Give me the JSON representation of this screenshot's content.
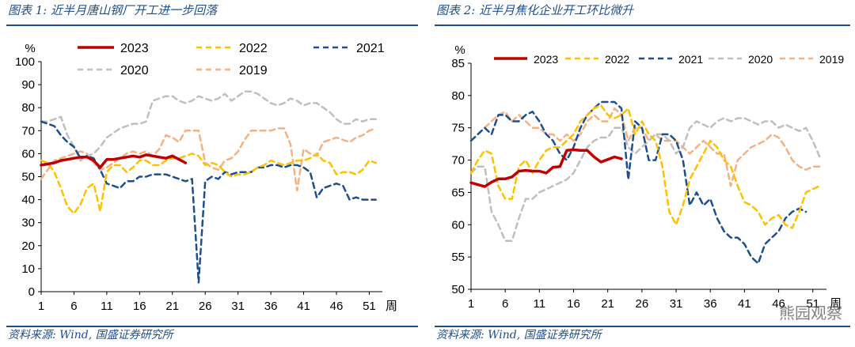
{
  "panels": [
    {
      "title": "图表 1:  近半月唐山钢厂开工进一步回落",
      "source": "资料来源:  Wind,  国盛证券研究所"
    },
    {
      "title": "图表 2:  近半月焦化企业开工环比微升",
      "source": "资料来源:  Wind,  国盛证券研究所",
      "watermark": "熊园观察"
    }
  ],
  "chart_data": [
    {
      "type": "line",
      "title": "",
      "ylabel": "%",
      "xlabel": "周",
      "ylim": [
        0,
        100
      ],
      "yticks": [
        0,
        10,
        20,
        30,
        40,
        50,
        60,
        70,
        80,
        90,
        100
      ],
      "xlim": [
        1,
        53
      ],
      "xticks": [
        1,
        6,
        11,
        16,
        21,
        26,
        31,
        36,
        41,
        46,
        51
      ],
      "legend_position": "top",
      "grid": false,
      "series": [
        {
          "name": "2023",
          "color": "#c00000",
          "dash": "",
          "width": 3.5,
          "x": [
            1,
            2,
            3,
            4,
            5,
            6,
            7,
            8,
            9,
            10,
            11,
            12,
            13,
            14,
            15,
            16,
            17,
            18,
            19,
            20,
            21,
            22,
            23
          ],
          "y": [
            55,
            55.5,
            56,
            57,
            57.5,
            58,
            58.5,
            58.5,
            57,
            54,
            57.5,
            57.5,
            58,
            58.5,
            59,
            58.5,
            59.5,
            59,
            58.5,
            58,
            59,
            57.5,
            56
          ]
        },
        {
          "name": "2022",
          "color": "#ffc000",
          "dash": "7,5",
          "width": 2.5,
          "x": [
            1,
            2,
            3,
            4,
            5,
            6,
            7,
            8,
            9,
            10,
            11,
            12,
            13,
            14,
            15,
            16,
            17,
            18,
            19,
            20,
            21,
            22,
            23,
            24,
            25,
            26,
            27,
            28,
            29,
            30,
            31,
            32,
            33,
            34,
            35,
            36,
            37,
            38,
            39,
            40,
            41,
            42,
            43,
            44,
            45,
            46,
            47,
            48,
            49,
            50,
            51,
            52
          ],
          "y": [
            57,
            56,
            52,
            45,
            37,
            34,
            38,
            45,
            47,
            35,
            52,
            55,
            55,
            52,
            54,
            57,
            57,
            55,
            55,
            57,
            58,
            58,
            59,
            60,
            59,
            55,
            56,
            55,
            52,
            50,
            51,
            51,
            52,
            54,
            55,
            57,
            56,
            55,
            56,
            57,
            57,
            58,
            60,
            57,
            56,
            51,
            52,
            52,
            51,
            53,
            57,
            56
          ]
        },
        {
          "name": "2021",
          "color": "#1f4e8c",
          "dash": "7,5",
          "width": 2.5,
          "x": [
            1,
            2,
            3,
            4,
            5,
            6,
            7,
            8,
            9,
            10,
            11,
            12,
            13,
            14,
            15,
            16,
            17,
            18,
            19,
            20,
            21,
            22,
            23,
            24,
            25,
            26,
            27,
            28,
            29,
            30,
            31,
            32,
            33,
            34,
            35,
            36,
            37,
            38,
            39,
            40,
            41,
            42,
            43,
            44,
            45,
            46,
            47,
            48,
            49,
            50,
            51,
            52
          ],
          "y": [
            74,
            73,
            72,
            68,
            65,
            63,
            58,
            59,
            58,
            53,
            47,
            46,
            45,
            48,
            48,
            50,
            50,
            51,
            51,
            51,
            50,
            49,
            48,
            49,
            4,
            48,
            50,
            49,
            52,
            51,
            52,
            52,
            52,
            54,
            54,
            55,
            55,
            54,
            55,
            55,
            54,
            52,
            41,
            45,
            46,
            47,
            46,
            40,
            41,
            40,
            40,
            40
          ]
        },
        {
          "name": "2020",
          "color": "#bfbfbf",
          "dash": "7,5",
          "width": 2.5,
          "x": [
            1,
            2,
            3,
            4,
            5,
            6,
            7,
            8,
            9,
            10,
            11,
            12,
            13,
            14,
            15,
            16,
            17,
            18,
            19,
            20,
            21,
            22,
            23,
            24,
            25,
            26,
            27,
            28,
            29,
            30,
            31,
            32,
            33,
            34,
            35,
            36,
            37,
            38,
            39,
            40,
            41,
            42,
            43,
            44,
            45,
            46,
            47,
            48,
            49,
            50,
            51,
            52
          ],
          "y": [
            74,
            74,
            75,
            76,
            68,
            63,
            57,
            59,
            60,
            63,
            67,
            69,
            71,
            72,
            73,
            73,
            74,
            83,
            84,
            85,
            85,
            83,
            82,
            83,
            85,
            84,
            83,
            84,
            86,
            83,
            85,
            87,
            87,
            86,
            84,
            82,
            81,
            82,
            84,
            83,
            81,
            82,
            82,
            80,
            78,
            75,
            73,
            73,
            75,
            74,
            75,
            75
          ]
        },
        {
          "name": "2019",
          "color": "#f4b183",
          "dash": "7,5",
          "width": 2.5,
          "x": [
            1,
            2,
            3,
            4,
            5,
            6,
            7,
            8,
            9,
            10,
            11,
            12,
            13,
            14,
            15,
            16,
            17,
            18,
            19,
            20,
            21,
            22,
            23,
            24,
            25,
            26,
            27,
            28,
            29,
            30,
            31,
            32,
            33,
            34,
            35,
            36,
            37,
            38,
            39,
            40,
            41,
            42,
            43,
            44,
            45,
            46,
            47,
            48,
            49,
            50,
            51,
            52
          ],
          "y": [
            49,
            53,
            57,
            58,
            59,
            60,
            61,
            60,
            56,
            53,
            54,
            56,
            58,
            60,
            61,
            60,
            61,
            59,
            62,
            68,
            67,
            65,
            70,
            70,
            70,
            56,
            54,
            53,
            57,
            58,
            61,
            66,
            70,
            70,
            70,
            70,
            71,
            71,
            64,
            44,
            62,
            60,
            59,
            65,
            66,
            67,
            66,
            65,
            67,
            68,
            70,
            71
          ]
        }
      ]
    },
    {
      "type": "line",
      "title": "",
      "ylabel": "%",
      "xlabel": "周",
      "ylim": [
        50,
        85
      ],
      "yticks": [
        50,
        55,
        60,
        65,
        70,
        75,
        80,
        85
      ],
      "xlim": [
        1,
        53
      ],
      "xticks": [
        1,
        6,
        11,
        16,
        21,
        26,
        31,
        36,
        41,
        46,
        51
      ],
      "legend_position": "top",
      "grid": false,
      "series": [
        {
          "name": "2023",
          "color": "#c00000",
          "dash": "",
          "width": 3.5,
          "x": [
            1,
            2,
            3,
            4,
            5,
            6,
            7,
            8,
            9,
            10,
            11,
            12,
            13,
            14,
            15,
            16,
            17,
            18,
            19,
            20,
            21,
            22,
            23
          ],
          "y": [
            66.5,
            66.2,
            65.9,
            66.6,
            67.1,
            67.1,
            67.4,
            68.3,
            68.4,
            68.3,
            68.3,
            68,
            68.9,
            69,
            71.5,
            71.6,
            71.5,
            71.5,
            70.5,
            69.7,
            70.1,
            70.5,
            70.2
          ]
        },
        {
          "name": "2022",
          "color": "#ffc000",
          "dash": "7,5",
          "width": 2.5,
          "x": [
            1,
            2,
            3,
            4,
            5,
            6,
            7,
            8,
            9,
            10,
            11,
            12,
            13,
            14,
            15,
            16,
            17,
            18,
            19,
            20,
            21,
            22,
            23,
            24,
            25,
            26,
            27,
            28,
            29,
            30,
            31,
            32,
            33,
            34,
            35,
            36,
            37,
            38,
            39,
            40,
            41,
            42,
            43,
            44,
            45,
            46,
            47,
            48,
            49,
            50,
            51,
            52
          ],
          "y": [
            68,
            70,
            71.5,
            71,
            66,
            64,
            64,
            69,
            70,
            68,
            70,
            71.5,
            72,
            72,
            73,
            74,
            76,
            77,
            78,
            78.5,
            77,
            76.5,
            77,
            78,
            74,
            76,
            74,
            73,
            69,
            62,
            60,
            63,
            67,
            69,
            71,
            73,
            72,
            70,
            69,
            66,
            63.5,
            63,
            62,
            60,
            61,
            61.5,
            60,
            59.5,
            62,
            65,
            65.5,
            66
          ]
        },
        {
          "name": "2021",
          "color": "#1f4e8c",
          "dash": "7,5",
          "width": 2.5,
          "x": [
            1,
            2,
            3,
            4,
            5,
            6,
            7,
            8,
            9,
            10,
            11,
            12,
            13,
            14,
            15,
            16,
            17,
            18,
            19,
            20,
            21,
            22,
            23,
            24,
            25,
            26,
            27,
            28,
            29,
            30,
            31,
            32,
            33,
            34,
            35,
            36,
            37,
            38,
            39,
            40,
            41,
            42,
            43,
            44,
            45,
            46,
            47,
            48,
            49,
            50
          ],
          "y": [
            73,
            74,
            75,
            74,
            77,
            77,
            76,
            76,
            77,
            77.5,
            76,
            74,
            73,
            71,
            70,
            72,
            75,
            77,
            78,
            79,
            79,
            79,
            78,
            67,
            76,
            75,
            70,
            70,
            74,
            74,
            73,
            70,
            63,
            65,
            63,
            64,
            61,
            59,
            58,
            58,
            57,
            55,
            54,
            57,
            58,
            59,
            61,
            62,
            62.5,
            62
          ]
        },
        {
          "name": "2020",
          "color": "#bfbfbf",
          "dash": "7,5",
          "width": 2.5,
          "x": [
            1,
            2,
            3,
            4,
            5,
            6,
            7,
            8,
            9,
            10,
            11,
            12,
            13,
            14,
            15,
            16,
            17,
            18,
            19,
            20,
            21,
            22,
            23,
            24,
            25,
            26,
            27,
            28,
            29,
            30,
            31,
            32,
            33,
            34,
            35,
            36,
            37,
            38,
            39,
            40,
            41,
            42,
            43,
            44,
            45,
            46,
            47,
            48,
            49,
            50,
            51,
            52
          ],
          "y": [
            68,
            69,
            69,
            62,
            60,
            57.5,
            57.5,
            61,
            64,
            64,
            65,
            65.5,
            66,
            66.5,
            67,
            68,
            70,
            72,
            73,
            73.5,
            73.5,
            75,
            75,
            72,
            71,
            72,
            73,
            74,
            74,
            73,
            71,
            72,
            75,
            76,
            75.5,
            75,
            76,
            76.5,
            76,
            76.5,
            76.5,
            76,
            75.5,
            76,
            76,
            75,
            75.5,
            75,
            74.5,
            75,
            73,
            70.5
          ]
        },
        {
          "name": "2019",
          "color": "#f4b183",
          "dash": "7,5",
          "width": 2.5,
          "x": [
            1,
            2,
            3,
            4,
            5,
            6,
            7,
            8,
            9,
            10,
            11,
            12,
            13,
            14,
            15,
            16,
            17,
            18,
            19,
            20,
            21,
            22,
            23,
            24,
            25,
            26,
            27,
            28,
            29,
            30,
            31,
            32,
            33,
            34,
            35,
            36,
            37,
            38,
            39,
            40,
            41,
            42,
            43,
            44,
            45,
            46,
            47,
            48,
            49,
            50,
            51,
            52
          ],
          "y": [
            73,
            74,
            75,
            76,
            77,
            77.5,
            76,
            77,
            76,
            75,
            75,
            74,
            74,
            73,
            74,
            73,
            74,
            76,
            77,
            76,
            76,
            78,
            77,
            73,
            75,
            75,
            73,
            74,
            73,
            73,
            73,
            72,
            71,
            72,
            73,
            72,
            71,
            71,
            66,
            70,
            71,
            72,
            72.5,
            73,
            74,
            73.5,
            72,
            70,
            69,
            68.5,
            69,
            69
          ]
        }
      ]
    }
  ]
}
